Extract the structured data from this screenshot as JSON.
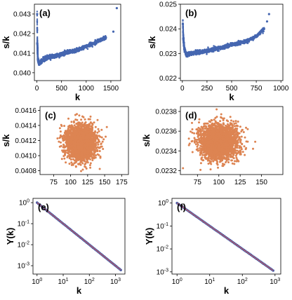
{
  "chart_data": [
    {
      "panel": "(a)",
      "type": "scatter",
      "xlabel": "k",
      "ylabel": "s/k",
      "xlim": [
        -50,
        1700
      ],
      "ylim": [
        0.0396,
        0.0435
      ],
      "xticks": [
        0,
        500,
        1000,
        1500
      ],
      "xtick_labels": [
        "0",
        "500",
        "1000",
        "1500"
      ],
      "yticks": [
        0.04,
        0.041,
        0.042,
        0.043
      ],
      "ytick_labels": [
        "0.040",
        "0.041",
        "0.042",
        "0.043"
      ],
      "color": "#4566b0",
      "series": [
        {
          "x": [
            5,
            10,
            20,
            40,
            80,
            150,
            250,
            350,
            450,
            550,
            650,
            750,
            850,
            950,
            1050,
            1150,
            1250,
            1400,
            1550,
            1620
          ],
          "y": [
            0.043,
            0.0415,
            0.0407,
            0.0405,
            0.04055,
            0.0407,
            0.0408,
            0.04085,
            0.0409,
            0.041,
            0.04105,
            0.0411,
            0.0412,
            0.0413,
            0.0414,
            0.0415,
            0.04165,
            0.0418,
            0.0421,
            0.0433
          ]
        }
      ]
    },
    {
      "panel": "(b)",
      "type": "scatter",
      "xlabel": "k",
      "ylabel": "s/k",
      "xlim": [
        -20,
        1020
      ],
      "ylim": [
        0.0219,
        0.025
      ],
      "xticks": [
        0,
        250,
        500,
        750,
        1000
      ],
      "xtick_labels": [
        "0",
        "250",
        "500",
        "750",
        "1000"
      ],
      "yticks": [
        0.022,
        0.023,
        0.024,
        0.025
      ],
      "ytick_labels": [
        "0.022",
        "0.023",
        "0.024",
        "0.025"
      ],
      "color": "#4566b0",
      "series": [
        {
          "x": [
            5,
            10,
            20,
            40,
            80,
            150,
            250,
            350,
            450,
            550,
            650,
            750,
            830,
            860,
            880
          ],
          "y": [
            0.0242,
            0.0236,
            0.0232,
            0.02295,
            0.023,
            0.02305,
            0.0231,
            0.0232,
            0.0233,
            0.0234,
            0.0235,
            0.0237,
            0.024,
            0.0243,
            0.0246
          ]
        }
      ]
    },
    {
      "panel": "(c)",
      "type": "scatter",
      "xlabel": "",
      "ylabel": "s/k",
      "xlim": [
        55,
        185
      ],
      "ylim": [
        0.04075,
        0.04165
      ],
      "xticks": [
        75,
        100,
        125,
        150,
        175
      ],
      "xtick_labels": [
        "75",
        "100",
        "125",
        "150",
        "175"
      ],
      "yticks": [
        0.0408,
        0.041,
        0.0412,
        0.0414,
        0.0416
      ],
      "ytick_labels": [
        "0.0408",
        "0.0410",
        "0.0412",
        "0.0414",
        "0.0416"
      ],
      "color": "#dd8452",
      "cloud": {
        "center_x": 115,
        "center_y": 0.04117,
        "sd_x": 11,
        "sd_y": 0.00011,
        "count": 2600
      }
    },
    {
      "panel": "(d)",
      "type": "scatter",
      "xlabel": "",
      "ylabel": "s/k",
      "xlim": [
        55,
        175
      ],
      "ylim": [
        0.02316,
        0.02385
      ],
      "xticks": [
        75,
        100,
        125,
        150
      ],
      "xtick_labels": [
        "75",
        "100",
        "125",
        "150"
      ],
      "yticks": [
        0.0232,
        0.0234,
        0.0236,
        0.0238
      ],
      "ytick_labels": [
        "0.0232",
        "0.0234",
        "0.0236",
        "0.0238"
      ],
      "color": "#dd8452",
      "cloud": {
        "center_x": 100,
        "center_y": 0.02349,
        "sd_x": 11,
        "sd_y": 9e-05,
        "count": 2600
      }
    },
    {
      "panel": "(e)",
      "type": "line",
      "xlabel": "k",
      "ylabel": "Y(k)",
      "xscale": "log",
      "yscale": "log",
      "xlim": [
        0.7,
        2300
      ],
      "ylim": [
        0.0004,
        1.6
      ],
      "xticks": [
        1,
        10,
        100,
        1000
      ],
      "xtick_exp": [
        "0",
        "1",
        "2",
        "3"
      ],
      "yticks": [
        1,
        0.1,
        0.01,
        0.001
      ],
      "ytick_exp": [
        "0",
        "-1",
        "-2",
        "-3"
      ],
      "color": "#4a5fa8",
      "fit_color": "#d9534f",
      "series": [
        {
          "x": [
            1,
            1600
          ],
          "y": [
            1,
            0.000625
          ]
        }
      ]
    },
    {
      "panel": "(f)",
      "type": "line",
      "xlabel": "k",
      "ylabel": "Y(k)",
      "xscale": "log",
      "yscale": "log",
      "xlim": [
        0.7,
        1500
      ],
      "ylim": [
        0.0008,
        1.6
      ],
      "xticks": [
        1,
        10,
        100,
        1000
      ],
      "xtick_exp": [
        "0",
        "1",
        "2",
        "3"
      ],
      "yticks": [
        1,
        0.1,
        0.01,
        0.001
      ],
      "ytick_exp": [
        "0",
        "-1",
        "-2",
        "-3"
      ],
      "color": "#4a5fa8",
      "fit_color": "#d9534f",
      "series": [
        {
          "x": [
            1,
            880
          ],
          "y": [
            1,
            0.00114
          ]
        }
      ]
    }
  ]
}
